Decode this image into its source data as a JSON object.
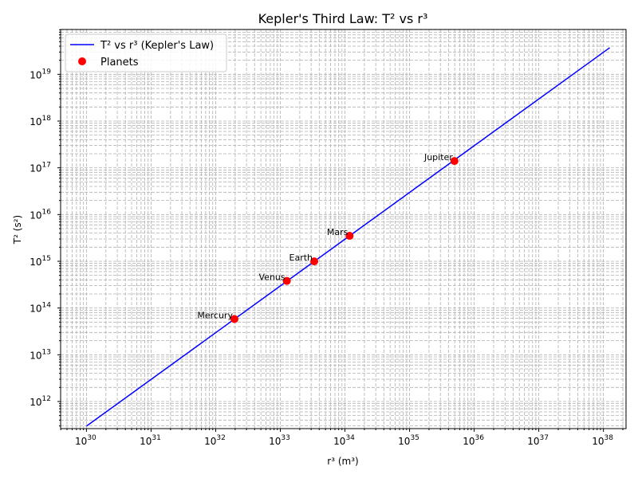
{
  "chart_data": {
    "type": "line",
    "title": "Kepler's Third Law: T² vs r³",
    "xlabel": "r³ (m³)",
    "ylabel": "T² (s²)",
    "xscale": "log",
    "yscale": "log",
    "xlim_exp": [
      29.6,
      38.35
    ],
    "ylim_exp": [
      11.42,
      19.96
    ],
    "x_tick_exponents": [
      30,
      31,
      32,
      33,
      34,
      35,
      36,
      37,
      38
    ],
    "y_tick_exponents": [
      12,
      13,
      14,
      15,
      16,
      17,
      18,
      19
    ],
    "grid": true,
    "legend": "top-left",
    "series": [
      {
        "name": "T² vs r³ (Kepler's Law)",
        "kind": "line",
        "color": "#0000ff",
        "x": [
          1e+30,
          1.25e+38
        ],
        "y": [
          297000000000.0,
          3.71e+19
        ]
      },
      {
        "name": "Planets",
        "kind": "scatter",
        "color": "#ff0000",
        "points": [
          {
            "label": "Mercury",
            "x": 1.95e+32,
            "y": 58000000000000.0
          },
          {
            "label": "Venus",
            "x": 1.26e+33,
            "y": 380000000000000.0
          },
          {
            "label": "Earth",
            "x": 3.35e+33,
            "y": 995000000000000.0
          },
          {
            "label": "Mars",
            "x": 1.18e+34,
            "y": 3500000000000000.0
          },
          {
            "label": "Jupiter",
            "x": 4.95e+35,
            "y": 1.4e+17
          }
        ]
      }
    ]
  }
}
